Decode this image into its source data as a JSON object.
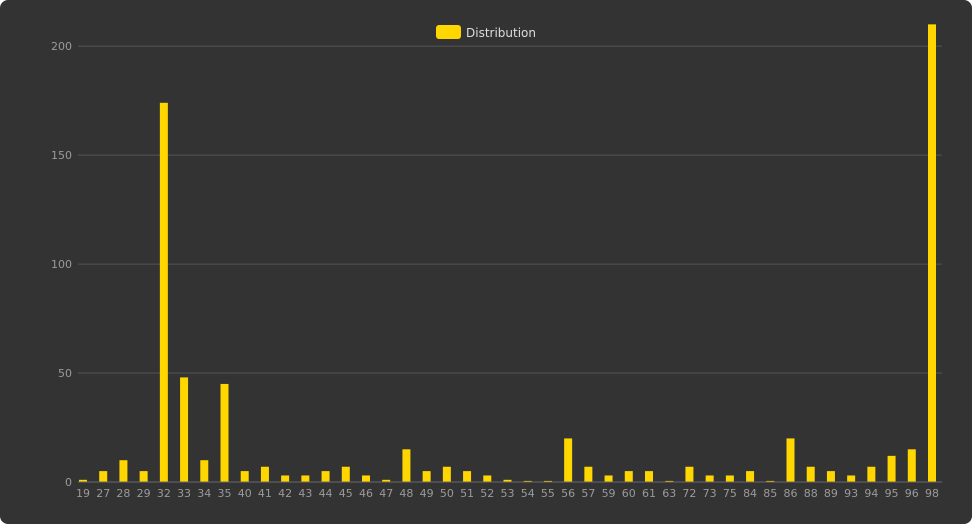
{
  "chart_data": {
    "type": "bar",
    "legend": {
      "label": "Distribution",
      "position": "top-center"
    },
    "bar_color": "#ffd600",
    "grid_color": "#555555",
    "categories": [
      "19",
      "27",
      "28",
      "29",
      "32",
      "33",
      "34",
      "35",
      "40",
      "41",
      "42",
      "43",
      "44",
      "45",
      "46",
      "47",
      "48",
      "49",
      "50",
      "51",
      "52",
      "53",
      "54",
      "55",
      "56",
      "57",
      "59",
      "60",
      "61",
      "63",
      "72",
      "73",
      "75",
      "84",
      "85",
      "86",
      "88",
      "89",
      "93",
      "94",
      "95",
      "96",
      "98"
    ],
    "series": [
      {
        "name": "Distribution",
        "values": [
          1,
          5,
          10,
          5,
          174,
          48,
          10,
          45,
          5,
          7,
          3,
          3,
          5,
          7,
          3,
          1,
          15,
          5,
          7,
          5,
          3,
          1,
          0.5,
          0.5,
          20,
          7,
          3,
          5,
          5,
          0.5,
          7,
          3,
          3,
          5,
          0.5,
          20,
          7,
          5,
          3,
          7,
          12,
          15,
          210
        ]
      }
    ],
    "yticks": [
      0,
      50,
      100,
      150,
      200
    ],
    "ylim": [
      0,
      212
    ],
    "grid": true
  }
}
